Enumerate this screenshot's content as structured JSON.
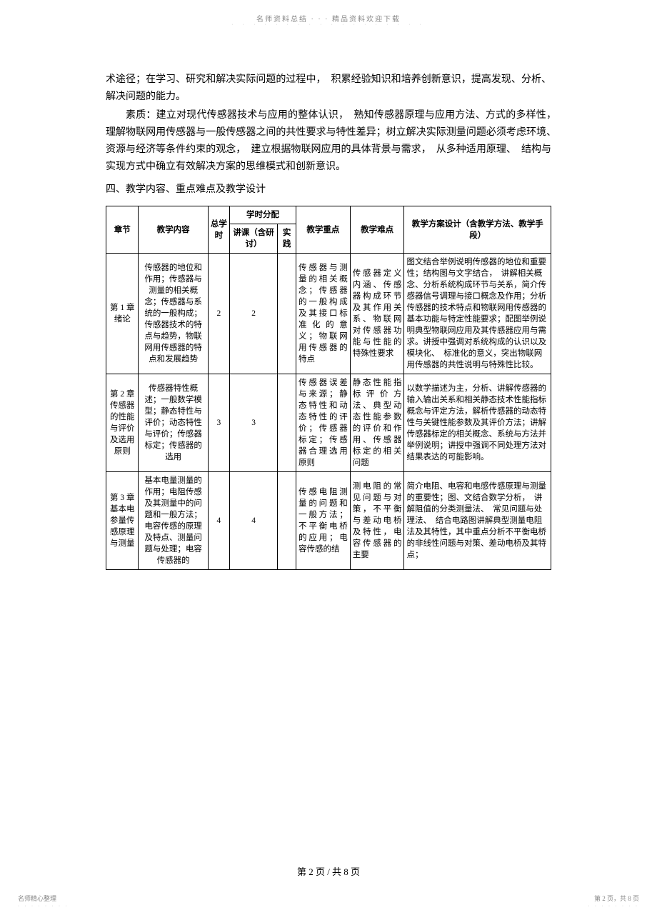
{
  "header": {
    "note": "名师资料总结 · · · 精品资料欢迎下载",
    "dots": "· · · · · · · · · · · · · · · · · ·"
  },
  "paragraphs": {
    "p1": "术途径；在学习、研究和解决实际问题的过程中，　积累经验知识和培养创新意识，提高发现、分析、解决问题的能力。",
    "p2": "素质：建立对现代传感器技术与应用的整体认识，　熟知传感器原理与应用方法、方式的多样性，　理解物联网用传感器与一般传感器之间的共性要求与特性差异；树立解决实际测量问题必须考虑环境、　资源与经济等条件约束的观念，　建立根据物联网应用的具体背景与需求，　从多种适用原理、　结构与实现方式中确立有效解决方案的思维模式和创新意识。"
  },
  "heading": "四、教学内容、重点难点及教学设计",
  "table": {
    "headers": {
      "chapter": "章节",
      "content": "教学内容",
      "total_hours": "总学时",
      "allocation": "学时分配",
      "lecture": "讲课（含研讨）",
      "practice": "实践",
      "focus": "教学重点",
      "difficulty": "教学难点",
      "design": "教学方案设计（含教学方法、教学手段）"
    },
    "rows": [
      {
        "chapter": "第 1 章 绪论",
        "content": "传感器的地位和作用；传感器与测量的相关概念；传感器与系统的一般构成；传感器技术的特点与趋势，物联网用传感器的特点和发展趋势",
        "total": "2",
        "lecture": "2",
        "practice": "",
        "focus": "传感器与测量的相关概念；传感器的一般构成及其接口标准化的意义；物联网用传感器的特点",
        "difficulty": "传感器定义内涵、传感器构成环节及其作用关系、物联网对传感器功能与性能的特殊性要求",
        "design": "图文结合举例说明传感器的地位和重要性；结构图与文字结合，　讲解相关概念、分析系统构成环节与关系，简介传感器信号调理与接口概念及作用；分析传感器的技术特点和物联网用传感器的基本功能与特定性能要求；配图举例说明典型物联网应用及其传感器应用与需求。讲授中强调对系统构成的认识以及模块化、　标准化的意义，突出物联网用传感器的共性说明与特殊性比较。"
      },
      {
        "chapter": "第 2 章 传感器的性能与评价及选用原则",
        "content": "传感器特性概述；一般数学模型；静态特性与评价；动态特性与评价；传感器标定；传感器的选用",
        "total": "3",
        "lecture": "3",
        "practice": "",
        "focus": "传感器误差与来源；静态特性和动态特性的评价；传感器标定；传感器合理选用原则",
        "difficulty": "静态性能指标评价方法、典型动态性能参数的评价和作用、传感器标定的相关问题",
        "design": "以数学描述为主，分析、讲解传感器的输入输出关系和相关静态技术性能指标概念与评定方法，解析传感器的动态特性与关键性能参数及其评价方法；讲解传感器标定的相关概念、系统与方法并举例说明；讲授中强调不同处理方法对结果表达的可能影响。"
      },
      {
        "chapter": "第 3 章 基本电参量传感原理与测量",
        "content": "基本电量测量的作用；电阻传感及其测量中的问题和一般方法；电容传感的原理及特点、测量问题与处理；电容传感器的",
        "total": "4",
        "lecture": "4",
        "practice": "",
        "focus": "传感电阻测量的问题和一般方法；不平衡电桥的应用；电容传感的结",
        "difficulty": "测电阻的常见问题与对策，不平衡与差动电桥及特性，电容传感器的主要",
        "design": "简介电阻、电容和电感传感原理与测量的重要性；图、文结合数学分析，　讲解阻值的分类测量法、　常见问题与处理法、　结合电路图讲解典型测量电阻法及其特性，其中重点分析不平衡电桥的非线性问题与对策、差动电桥及其特点；"
      }
    ]
  },
  "page_num": "第 2 页 / 共 8 页",
  "footer": {
    "left": "名师精心整理",
    "right": "第 2 页，共 8 页",
    "dots": "· · · · · · · ·"
  }
}
